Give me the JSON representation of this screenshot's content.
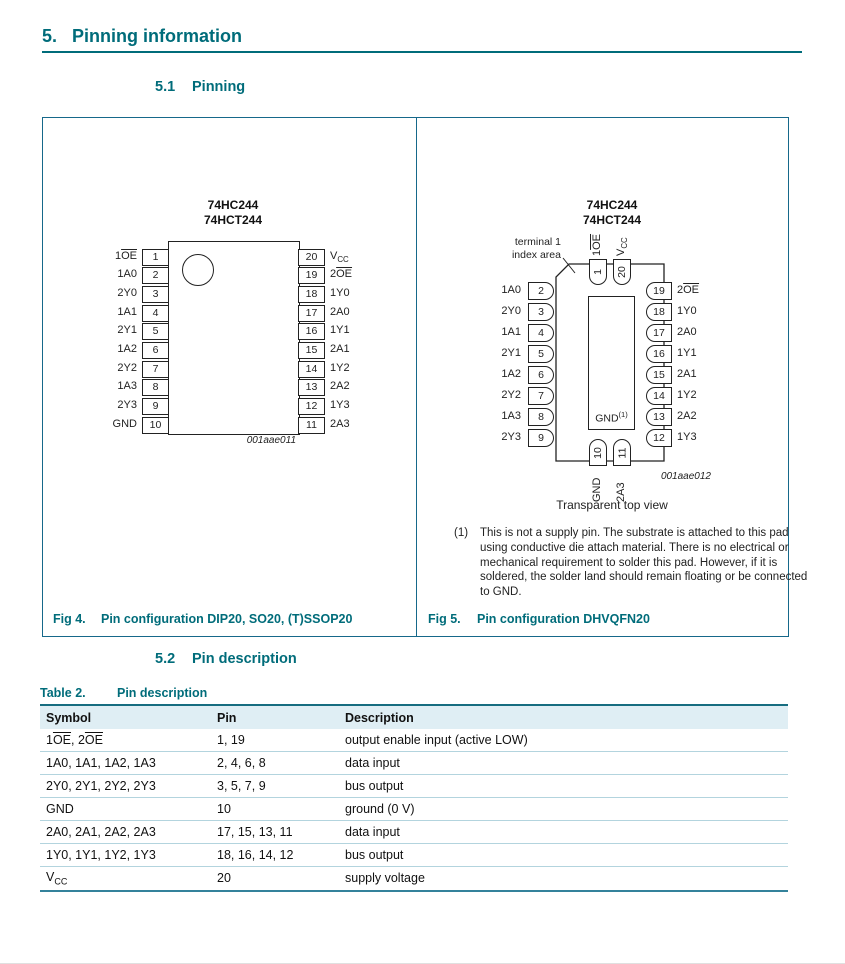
{
  "colors": {
    "heading_teal": "#006c7a",
    "figure_border": "#16688a",
    "table_header_bg": "#dfeef4",
    "table_row_line": "#b3d4de"
  },
  "section": {
    "number": "5.",
    "title": "Pinning information",
    "sub1_number": "5.1",
    "sub1_title": "Pinning",
    "sub2_number": "5.2",
    "sub2_title": "Pin description"
  },
  "dip": {
    "title_line1": "74HC244",
    "title_line2": "74HCT244",
    "left_pins": [
      {
        "label": "1{OE}",
        "num": "1"
      },
      {
        "label": "1A0",
        "num": "2"
      },
      {
        "label": "2Y0",
        "num": "3"
      },
      {
        "label": "1A1",
        "num": "4"
      },
      {
        "label": "2Y1",
        "num": "5"
      },
      {
        "label": "1A2",
        "num": "6"
      },
      {
        "label": "2Y2",
        "num": "7"
      },
      {
        "label": "1A3",
        "num": "8"
      },
      {
        "label": "2Y3",
        "num": "9"
      },
      {
        "label": "GND",
        "num": "10"
      }
    ],
    "right_pins": [
      {
        "num": "20",
        "label": "V~CC~"
      },
      {
        "num": "19",
        "label": "2{OE}"
      },
      {
        "num": "18",
        "label": "1Y0"
      },
      {
        "num": "17",
        "label": "2A0"
      },
      {
        "num": "16",
        "label": "1Y1"
      },
      {
        "num": "15",
        "label": "2A1"
      },
      {
        "num": "14",
        "label": "1Y2"
      },
      {
        "num": "13",
        "label": "2A2"
      },
      {
        "num": "12",
        "label": "1Y3"
      },
      {
        "num": "11",
        "label": "2A3"
      }
    ],
    "code": "001aae011"
  },
  "qfn": {
    "title_line1": "74HC244",
    "title_line2": "74HCT244",
    "index_line1": "terminal 1",
    "index_line2": "index area",
    "top_pins": [
      {
        "num": "1",
        "label": "1{OE}"
      },
      {
        "num": "20",
        "label": "V~CC~"
      }
    ],
    "left_pins": [
      {
        "num": "2",
        "label": "1A0"
      },
      {
        "num": "3",
        "label": "2Y0"
      },
      {
        "num": "4",
        "label": "1A1"
      },
      {
        "num": "5",
        "label": "2Y1"
      },
      {
        "num": "6",
        "label": "1A2"
      },
      {
        "num": "7",
        "label": "2Y2"
      },
      {
        "num": "8",
        "label": "1A3"
      },
      {
        "num": "9",
        "label": "2Y3"
      }
    ],
    "right_pins": [
      {
        "num": "19",
        "label": "2{OE}"
      },
      {
        "num": "18",
        "label": "1Y0"
      },
      {
        "num": "17",
        "label": "2A0"
      },
      {
        "num": "16",
        "label": "1Y1"
      },
      {
        "num": "15",
        "label": "2A1"
      },
      {
        "num": "14",
        "label": "1Y2"
      },
      {
        "num": "13",
        "label": "2A2"
      },
      {
        "num": "12",
        "label": "1Y3"
      }
    ],
    "bottom_pins": [
      {
        "num": "10",
        "label": "GND"
      },
      {
        "num": "11",
        "label": "2A3"
      }
    ],
    "pad_label": "GND^(1)^",
    "code": "001aae012",
    "view_label": "Transparent top view"
  },
  "footnote": {
    "marker": "(1)",
    "text": "This is not a supply pin. The substrate is attached to this pad using conductive die attach material. There is no electrical or mechanical requirement to solder this pad. However, if it is soldered, the solder land should remain floating or be connected to GND."
  },
  "figures": {
    "fig4_label": "Fig 4.",
    "fig4_caption": "Pin configuration DIP20, SO20, (T)SSOP20",
    "fig5_label": "Fig 5.",
    "fig5_caption": "Pin configuration DHVQFN20"
  },
  "table": {
    "label": "Table 2.",
    "title": "Pin description",
    "headers": [
      "Symbol",
      "Pin",
      "Description"
    ],
    "rows": [
      {
        "symbol": "1{OE}, 2{OE}",
        "pin": "1, 19",
        "description": "output enable input (active LOW)"
      },
      {
        "symbol": "1A0, 1A1, 1A2, 1A3",
        "pin": "2, 4, 6, 8",
        "description": "data input"
      },
      {
        "symbol": "2Y0, 2Y1, 2Y2, 2Y3",
        "pin": "3, 5, 7, 9",
        "description": "bus output"
      },
      {
        "symbol": "GND",
        "pin": "10",
        "description": "ground (0 V)"
      },
      {
        "symbol": "2A0, 2A1, 2A2, 2A3",
        "pin": "17, 15, 13, 11",
        "description": "data input"
      },
      {
        "symbol": "1Y0, 1Y1, 1Y2, 1Y3",
        "pin": "18, 16, 14, 12",
        "description": "bus output"
      },
      {
        "symbol": "V~CC~",
        "pin": "20",
        "description": "supply voltage"
      }
    ]
  }
}
